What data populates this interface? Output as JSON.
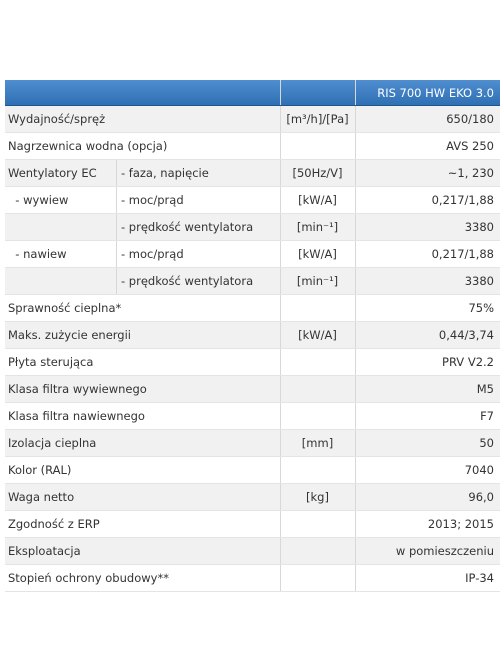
{
  "table": {
    "header": {
      "title": "RIS 700 HW EKO 3.0"
    },
    "rows": [
      {
        "label": "Wydajność/spręż",
        "unit": "[m³/h]/[Pa]",
        "value": "650/180"
      },
      {
        "label": "Nagrzewnica wodna (opcja)",
        "value": "AVS 250"
      },
      {
        "label": "Wentylatory EC",
        "sub": "- faza, napięcie",
        "unit": "[50Hz/V]",
        "value": "~1, 230"
      },
      {
        "label": "  - wywiew",
        "sub": "- moc/prąd",
        "unit": "[kW/A]",
        "value": "0,217/1,88"
      },
      {
        "sub": "- prędkość wentylatora",
        "unit": "[min⁻¹]",
        "value": "3380"
      },
      {
        "label": "  - nawiew",
        "sub": "- moc/prąd",
        "unit": "[kW/A]",
        "value": "0,217/1,88"
      },
      {
        "sub": "- prędkość wentylatora",
        "unit": "[min⁻¹]",
        "value": "3380"
      },
      {
        "label": "Sprawność cieplna*",
        "value": "75%"
      },
      {
        "label": "Maks. zużycie energii",
        "unit": "[kW/A]",
        "value": "0,44/3,74"
      },
      {
        "label": "Płyta sterująca",
        "value": "PRV V2.2"
      },
      {
        "label": "Klasa filtra wywiewnego",
        "value": "M5"
      },
      {
        "label": "Klasa filtra nawiewnego",
        "value": "F7"
      },
      {
        "label": "Izolacja cieplna",
        "unit": "[mm]",
        "value": "50"
      },
      {
        "label": "Kolor (RAL)",
        "value": "7040"
      },
      {
        "label": "Waga netto",
        "unit": "[kg]",
        "value": "96,0"
      },
      {
        "label": "Zgodność z ERP",
        "value": "2013; 2015"
      },
      {
        "label": "Eksploatacja",
        "value": "w pomieszczeniu"
      },
      {
        "label": "Stopień ochrony obudowy**",
        "value": "IP-34"
      }
    ]
  }
}
